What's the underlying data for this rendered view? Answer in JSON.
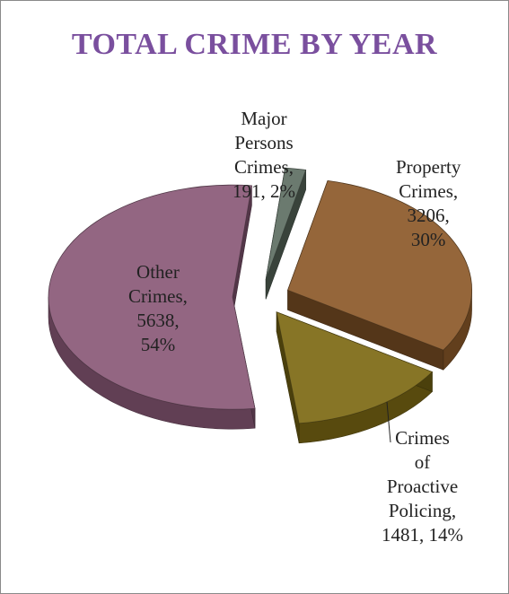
{
  "chart_data": {
    "type": "pie",
    "title": "TOTAL CRIME BY YEAR",
    "three_d": true,
    "exploded": true,
    "slices": [
      {
        "label": "Major Persons Crimes",
        "value": 191,
        "percent": "2%",
        "color": "#5f6f63",
        "label_lines": [
          "Major",
          "Persons",
          "Crimes,",
          "191, 2%"
        ]
      },
      {
        "label": "Property Crimes",
        "value": 3206,
        "percent": "30%",
        "color": "#8c5a2a",
        "label_lines": [
          "Property",
          "Crimes,",
          "3206,",
          "30%"
        ]
      },
      {
        "label": "Crimes of Proactive Policing",
        "value": 1481,
        "percent": "14%",
        "color": "#7d6a14",
        "label_lines": [
          "Crimes",
          "of",
          "Proactive",
          "Policing,",
          "1481, 14%"
        ]
      },
      {
        "label": "Other Crimes",
        "value": 5638,
        "percent": "54%",
        "color": "#8a5a78",
        "label_lines": [
          "Other",
          "Crimes,",
          "5638,",
          "54%"
        ]
      }
    ]
  }
}
